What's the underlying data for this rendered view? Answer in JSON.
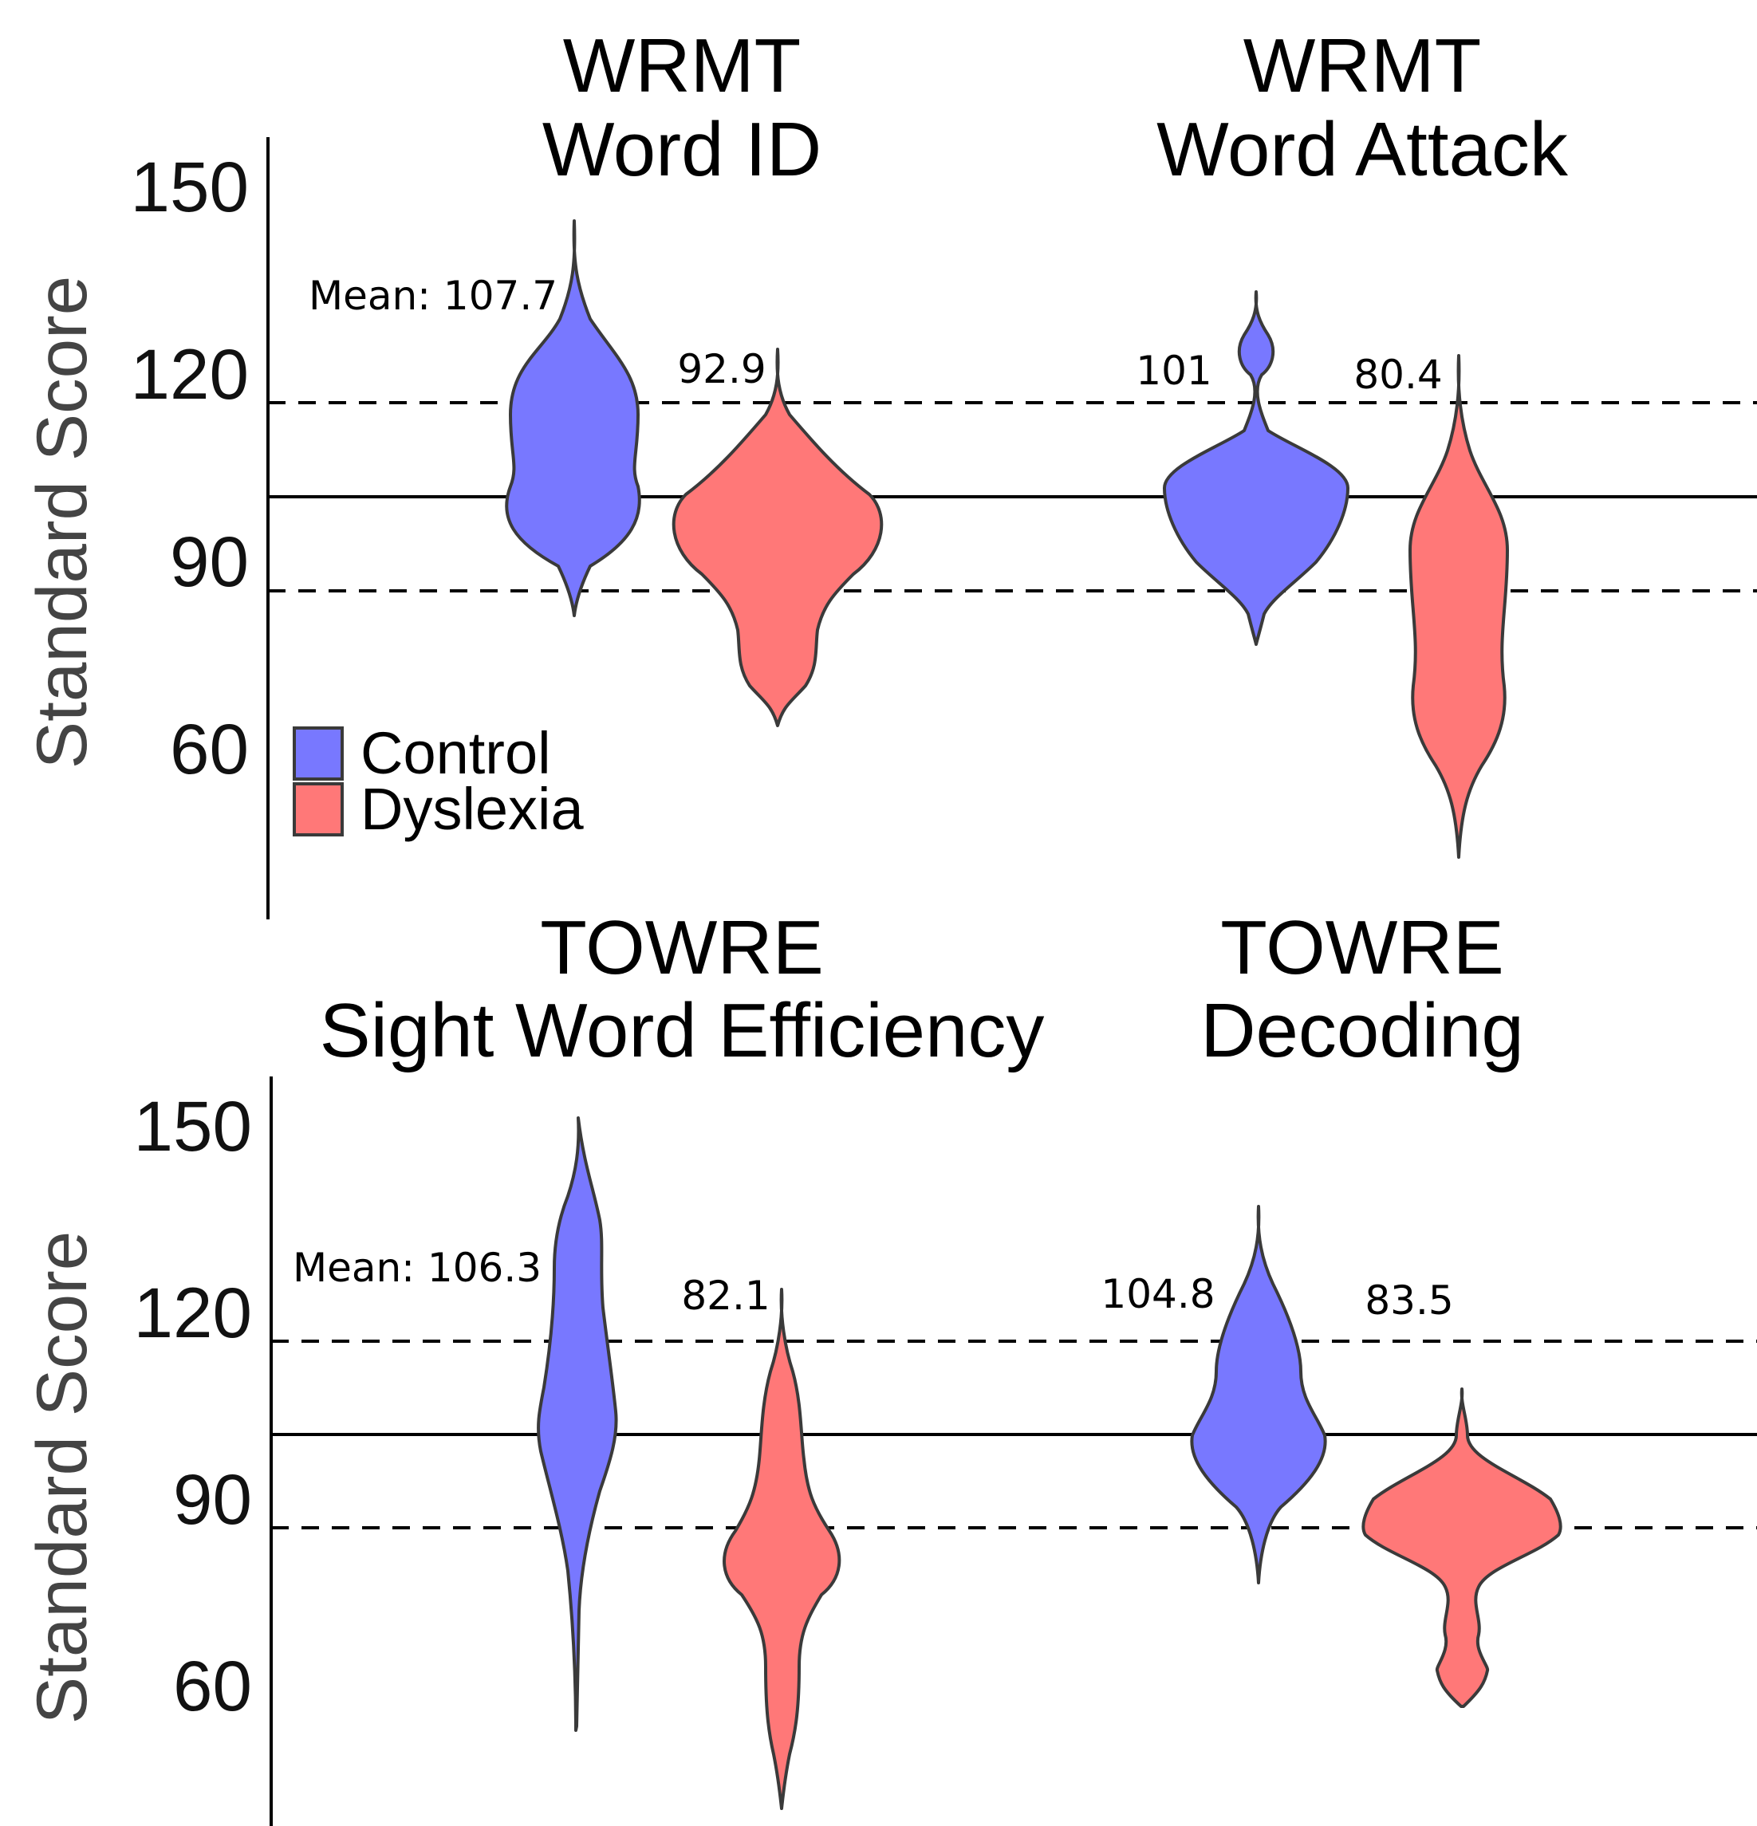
{
  "colors": {
    "control": "#7878ff",
    "dyslexia": "#ff7878"
  },
  "legend": [
    {
      "key": "control",
      "label": "Control"
    },
    {
      "key": "dyslexia",
      "label": "Dyslexia"
    }
  ],
  "ylabel": "Standard Score",
  "yticks": [
    "150",
    "120",
    "90",
    "60"
  ],
  "chart_data": [
    {
      "type": "violin",
      "title_line1": "WRMT",
      "title_line2": "Word ID",
      "ylabel": "Standard Score",
      "yticks": [
        60,
        90,
        120,
        150
      ],
      "reference_lines": {
        "solid": 100,
        "dashed": [
          85,
          115
        ]
      },
      "series": [
        {
          "group": "Control",
          "mean_label": "Mean: 107.7",
          "mean": 107.7,
          "min": 79,
          "max": 142
        },
        {
          "group": "Dyslexia",
          "mean_label": "92.9",
          "mean": 92.9,
          "min": 60,
          "max": 121
        }
      ]
    },
    {
      "type": "violin",
      "title_line1": "WRMT",
      "title_line2": "Word Attack",
      "ylabel": "",
      "yticks": [],
      "reference_lines": {
        "solid": 100,
        "dashed": [
          85,
          115
        ]
      },
      "series": [
        {
          "group": "Control",
          "mean_label": "101",
          "mean": 101,
          "min": 74,
          "max": 131
        },
        {
          "group": "Dyslexia",
          "mean_label": "80.4",
          "mean": 80.4,
          "min": 39,
          "max": 120
        }
      ]
    },
    {
      "type": "violin",
      "title_line1": "TOWRE",
      "title_line2": "Sight Word Efficiency",
      "ylabel": "Standard Score",
      "yticks": [
        60,
        90,
        120,
        150
      ],
      "reference_lines": {
        "solid": 100,
        "dashed": [
          85,
          115
        ]
      },
      "series": [
        {
          "group": "Control",
          "mean_label": "Mean: 106.3",
          "mean": 106.3,
          "min": 52,
          "max": 150
        },
        {
          "group": "Dyslexia",
          "mean_label": "82.1",
          "mean": 82.1,
          "min": 40,
          "max": 119
        }
      ]
    },
    {
      "type": "violin",
      "title_line1": "TOWRE",
      "title_line2": "Decoding",
      "ylabel": "",
      "yticks": [],
      "reference_lines": {
        "solid": 100,
        "dashed": [
          85,
          115
        ]
      },
      "series": [
        {
          "group": "Control",
          "mean_label": "104.8",
          "mean": 104.8,
          "min": 75,
          "max": 136
        },
        {
          "group": "Dyslexia",
          "mean_label": "83.5",
          "mean": 83.5,
          "min": 57,
          "max": 107
        }
      ]
    }
  ]
}
